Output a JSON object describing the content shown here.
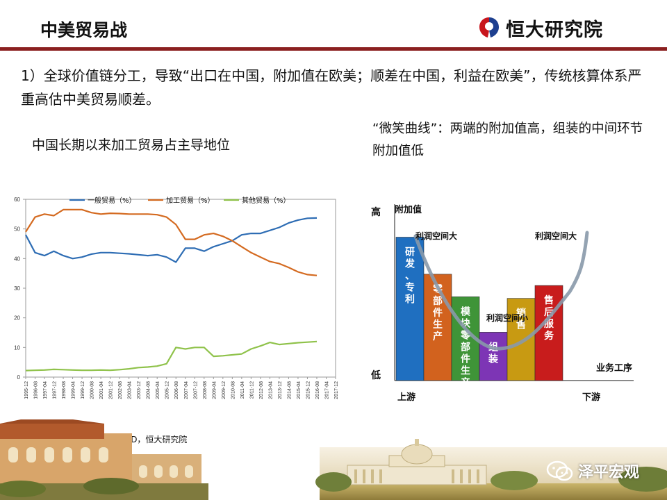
{
  "header": {
    "title": "中美贸易战",
    "brand": "恒大研究院"
  },
  "main": {
    "text": "1）全球价值链分工，导致“出口在中国，附加值在欧美；顺差在中国，利益在欧美”，传统核算体系严重高估中美贸易顺差。"
  },
  "left_caption": "中国长期以来加工贸易占主导地位",
  "right_caption": "“微笑曲线”：两端的附加值高，组装的中间环节附加值低",
  "source": "资料来源： WIND，恒大研究院",
  "footer": {
    "wechat_account": "泽平宏观"
  },
  "colors": {
    "accent_dark_red": "#8a1f1f",
    "general_trade": "#2e6db4",
    "processing_trade": "#d46a20",
    "other_trade": "#8fc24a"
  },
  "chart_data": [
    {
      "type": "line",
      "title": "",
      "xlabel": "",
      "ylabel": "",
      "ylim": [
        0,
        60
      ],
      "yticks": [
        "0",
        "10",
        "20",
        "30",
        "40",
        "50",
        "60"
      ],
      "legend_placement": "top",
      "grid": false,
      "x": [
        "1995-12",
        "1996-08",
        "1997-04",
        "1997-12",
        "1998-08",
        "1999-04",
        "1999-12",
        "2000-08",
        "2001-04",
        "2001-12",
        "2002-08",
        "2003-04",
        "2003-12",
        "2004-08",
        "2005-04",
        "2005-12",
        "2006-08",
        "2007-04",
        "2007-12",
        "2008-08",
        "2009-04",
        "2009-12",
        "2010-08",
        "2011-04",
        "2011-12",
        "2012-08",
        "2013-04",
        "2013-12",
        "2014-08",
        "2015-04",
        "2015-12",
        "2016-08",
        "2017-04",
        "2017-12"
      ],
      "series": [
        {
          "name": "一般贸易（%）",
          "color": "#2e6db4",
          "values": [
            48,
            42,
            41,
            42.5,
            41,
            40,
            40.5,
            41.5,
            42,
            42,
            41.8,
            41.6,
            41.3,
            41,
            41.3,
            40.5,
            38.8,
            43.5,
            43.5,
            42.5,
            44,
            45,
            46,
            48,
            48.5,
            48.5,
            49.5,
            50.5,
            52,
            53,
            53.6,
            53.7,
            null,
            null
          ]
        },
        {
          "name": "加工贸易（%）",
          "color": "#d46a20",
          "values": [
            49,
            54,
            55,
            54.5,
            56.5,
            56.5,
            56.5,
            55.5,
            55,
            55.3,
            55.2,
            55,
            55,
            55,
            54.8,
            54,
            51.5,
            46.5,
            46.5,
            48,
            48.5,
            47.5,
            46,
            44,
            42,
            40.5,
            39,
            38.3,
            37,
            35.5,
            34.6,
            34.3,
            null,
            null
          ]
        },
        {
          "name": "其他贸易（%）",
          "color": "#8fc24a",
          "values": [
            2.2,
            2.3,
            2.4,
            2.6,
            2.5,
            2.4,
            2.3,
            2.3,
            2.4,
            2.3,
            2.5,
            2.8,
            3.2,
            3.4,
            3.7,
            4.5,
            10,
            9.5,
            10,
            10,
            7,
            7.2,
            7.5,
            7.8,
            9.5,
            10.5,
            11.7,
            11,
            11.3,
            11.6,
            11.8,
            12,
            null,
            null
          ]
        }
      ]
    },
    {
      "type": "bar",
      "title": "",
      "ylabel": "附加值",
      "xlabel": "业务工序",
      "y_high_label": "高",
      "y_low_label": "低",
      "x_start_label": "上游",
      "x_end_label": "下游",
      "categories": [
        "研发、专利",
        "零部件生产",
        "模块零部件生产",
        "组装",
        "销售",
        "售后服务"
      ],
      "values": [
        89,
        66,
        52,
        30,
        51,
        59
      ],
      "bar_colors": [
        "#1f6fc0",
        "#d2621e",
        "#3f9438",
        "#7d35b5",
        "#c89a12",
        "#c81c1c"
      ],
      "curve_annotations": [
        "利润空间大",
        "利润空间小",
        "利润空间大"
      ]
    }
  ]
}
